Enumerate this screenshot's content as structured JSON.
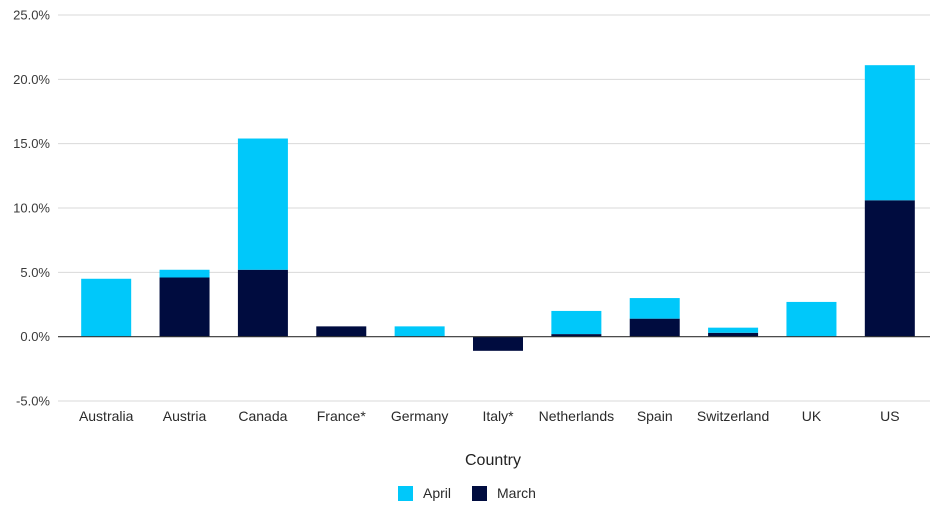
{
  "chart_data": {
    "type": "bar",
    "stacked": true,
    "title": "",
    "xlabel": "Country",
    "ylabel": "",
    "ylim": [
      -5,
      25
    ],
    "yticks": [
      -5,
      0,
      5,
      10,
      15,
      20,
      25
    ],
    "ytick_labels": [
      "-5.0%",
      "0.0%",
      "5.0%",
      "10.0%",
      "15.0%",
      "20.0%",
      "25.0%"
    ],
    "grid": true,
    "legend_position": "bottom",
    "categories": [
      "Australia",
      "Austria",
      "Canada",
      "France*",
      "Germany",
      "Italy*",
      "Netherlands",
      "Spain",
      "Switzerland",
      "UK",
      "US"
    ],
    "series": [
      {
        "name": "March",
        "color": "#000c3f",
        "values": [
          0,
          4.6,
          5.2,
          0.8,
          0,
          -1.1,
          0.2,
          1.4,
          0.3,
          0,
          10.6
        ]
      },
      {
        "name": "April",
        "color": "#00c8fa",
        "values": [
          4.5,
          0.6,
          10.2,
          0,
          0.8,
          0,
          1.8,
          1.6,
          0.4,
          2.7,
          10.5
        ]
      }
    ],
    "legend_order": [
      "April",
      "March"
    ]
  }
}
